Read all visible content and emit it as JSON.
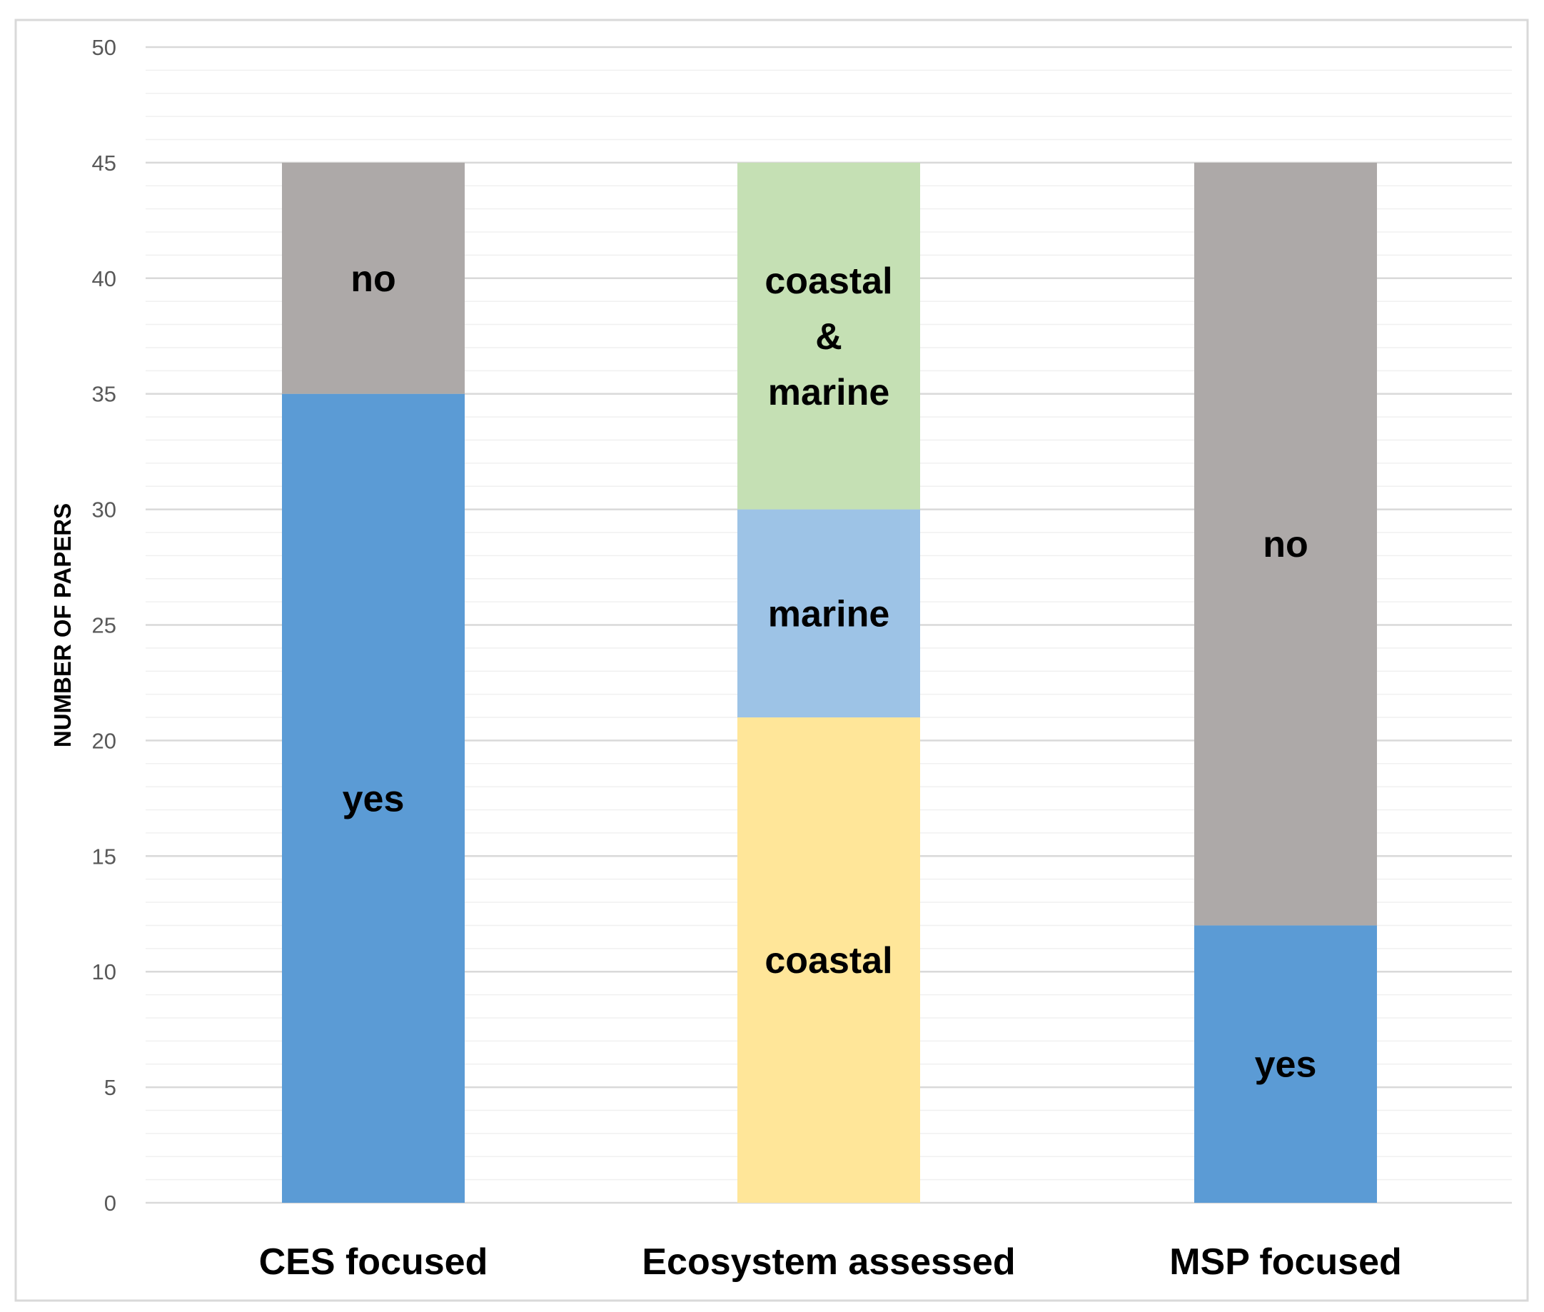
{
  "chart_data": {
    "type": "bar",
    "stacked": true,
    "title": "",
    "xlabel": "",
    "ylabel": "NUMBER OF PAPERS",
    "ylim": [
      0,
      50
    ],
    "yticks": [
      0,
      5,
      10,
      15,
      20,
      25,
      30,
      35,
      40,
      45,
      50
    ],
    "grid": true,
    "legend": "none",
    "categories": [
      "CES focused",
      "Ecosystem assessed",
      "MSP focused"
    ],
    "stacks": [
      {
        "category": "CES focused",
        "segments": [
          {
            "label": "yes",
            "value": 35,
            "color": "#5B9BD5"
          },
          {
            "label": "no",
            "value": 10,
            "color": "#ADA9A8"
          }
        ]
      },
      {
        "category": "Ecosystem assessed",
        "segments": [
          {
            "label": "coastal",
            "value": 21,
            "color": "#FFE699"
          },
          {
            "label": "marine",
            "value": 9,
            "color": "#9DC3E6"
          },
          {
            "label": "coastal & marine",
            "value": 15,
            "color": "#C5E0B4"
          }
        ]
      },
      {
        "category": "MSP focused",
        "segments": [
          {
            "label": "yes",
            "value": 12,
            "color": "#5B9BD5"
          },
          {
            "label": "no",
            "value": 33,
            "color": "#ADA9A8"
          }
        ]
      }
    ]
  }
}
